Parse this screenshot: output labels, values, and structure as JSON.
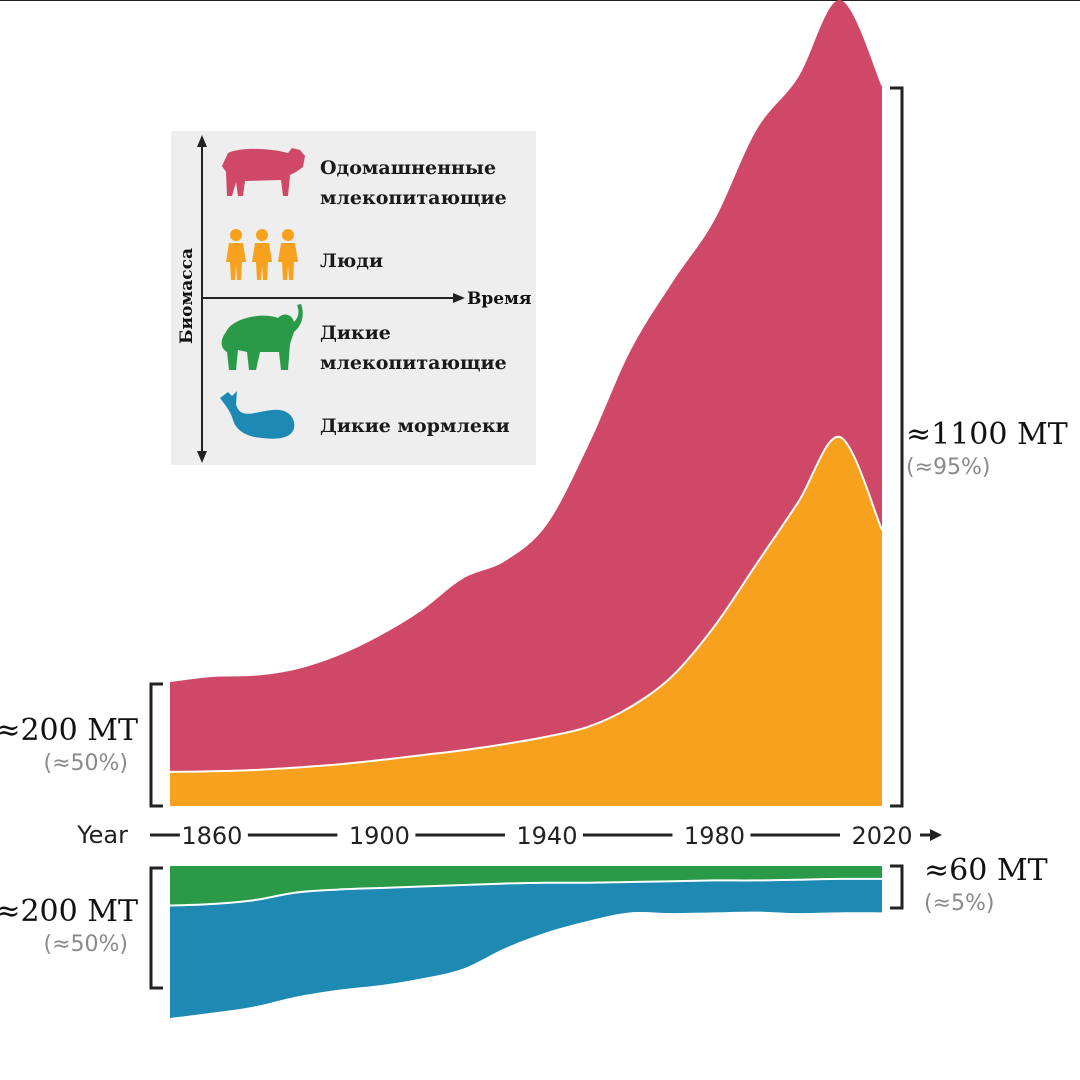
{
  "colors": {
    "domesticated": "#d04868",
    "humans": "#f7a11e",
    "wild_mammals": "#2a9a48",
    "wild_marine": "#1e8ab4",
    "legend_bg": "#eeeeee"
  },
  "legend": {
    "y_axis_label": "Биомасса",
    "x_axis_label": "Время",
    "items": [
      {
        "icon": "cow-icon",
        "line1": "Одомашненные",
        "line2": "млекопитающие"
      },
      {
        "icon": "people-icon",
        "line1": "Люди",
        "line2": ""
      },
      {
        "icon": "elephant-icon",
        "line1": "Дикие",
        "line2": "млекопитающие"
      },
      {
        "icon": "whale-icon",
        "line1": "Дикие мормлеки",
        "line2": ""
      }
    ]
  },
  "annotations": {
    "left_top_value": "≈200 MT",
    "left_top_pct": "(≈50%)",
    "left_bottom_value": "≈200 MT",
    "left_bottom_pct": "(≈50%)",
    "right_top_value": "≈1100 MT",
    "right_top_pct": "(≈95%)",
    "right_bottom_value": "≈60 MT",
    "right_bottom_pct": "(≈5%)"
  },
  "chart_data": {
    "type": "area",
    "xlabel": "Year",
    "ylabel": "",
    "x_ticks": [
      1860,
      1900,
      1940,
      1980,
      2020
    ],
    "xlim": [
      1850,
      2020
    ],
    "upper_panel": {
      "ylim": [
        0,
        1160
      ],
      "x": [
        1850,
        1860,
        1870,
        1880,
        1890,
        1900,
        1910,
        1920,
        1930,
        1940,
        1950,
        1960,
        1970,
        1980,
        1990,
        2000,
        2010,
        2020
      ],
      "series": [
        {
          "name": "Люди",
          "key": "humans",
          "values": [
            55,
            56,
            58,
            62,
            67,
            74,
            82,
            90,
            100,
            112,
            128,
            160,
            210,
            290,
            390,
            490,
            595,
            445
          ]
        },
        {
          "name": "Одомашненные млекопитающие",
          "key": "domesticated",
          "values": [
            145,
            152,
            152,
            158,
            175,
            200,
            233,
            277,
            295,
            342,
            455,
            575,
            635,
            655,
            700,
            685,
            705,
            715
          ]
        }
      ]
    },
    "lower_panel": {
      "ylim": [
        -205,
        0
      ],
      "x": [
        1850,
        1860,
        1870,
        1880,
        1890,
        1900,
        1910,
        1920,
        1930,
        1940,
        1950,
        1960,
        1970,
        1980,
        1990,
        2000,
        2010,
        2020
      ],
      "series": [
        {
          "name": "Дикие млекопитающие",
          "key": "wild_mammals",
          "values": [
            52,
            50,
            45,
            35,
            31,
            29,
            27,
            25,
            23,
            22,
            22,
            21,
            20,
            19,
            19,
            18,
            17,
            17
          ]
        },
        {
          "name": "Дикие мормлеки",
          "key": "wild_marine",
          "values": [
            148,
            143,
            140,
            137,
            132,
            128,
            121,
            110,
            85,
            65,
            50,
            40,
            42,
            42,
            41,
            44,
            44,
            44
          ]
        }
      ]
    }
  }
}
